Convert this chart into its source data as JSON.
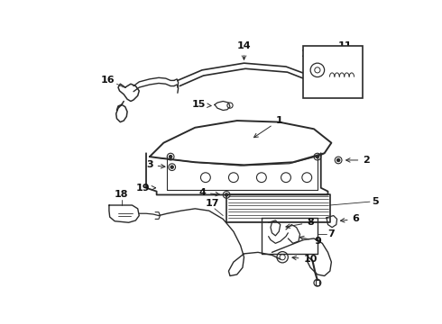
{
  "bg_color": "#ffffff",
  "line_color": "#2a2a2a",
  "text_color": "#111111",
  "figsize": [
    4.9,
    3.6
  ],
  "dpi": 100
}
